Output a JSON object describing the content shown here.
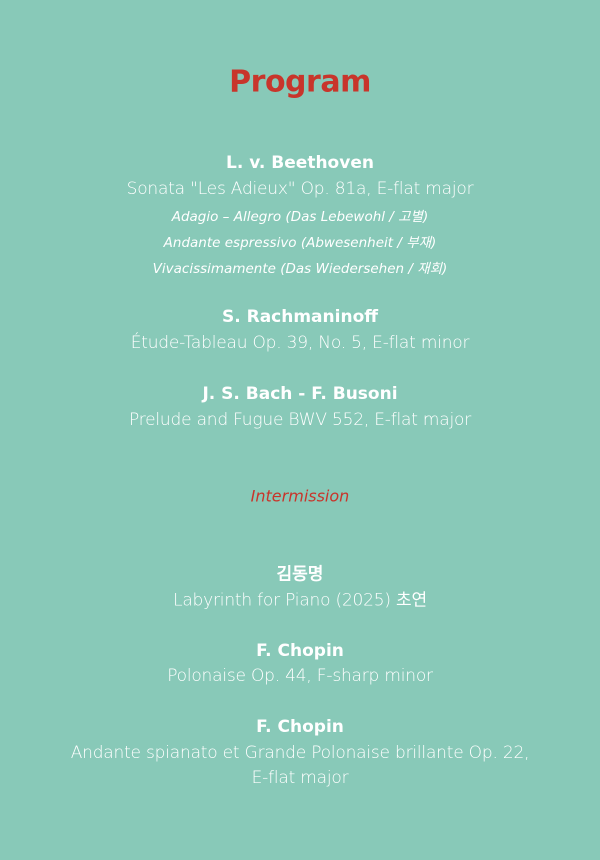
{
  "title": "Program",
  "colors": {
    "background": "#88c9b8",
    "accent": "#c8352b",
    "text": "#ffffff"
  },
  "first_half": [
    {
      "composer": "L. v. Beethoven",
      "work": "Sonata \"Les Adieux\" Op. 81a, E-flat major",
      "movements": [
        "Adagio – Allegro (Das Lebewohl / 고별)",
        "Andante espressivo (Abwesenheit / 부재)",
        "Vivacissimamente (Das Wiedersehen / 재회)"
      ]
    },
    {
      "composer": "S. Rachmaninoff",
      "work": "Étude-Tableau Op. 39, No. 5, E-flat minor"
    },
    {
      "composer": "J. S. Bach - F. Busoni",
      "work": "Prelude and Fugue BWV 552, E-flat major"
    }
  ],
  "intermission": "Intermission",
  "second_half": [
    {
      "composer": "김동명",
      "work": "Labyrinth for Piano (2025) 초연"
    },
    {
      "composer": "F. Chopin",
      "work": "Polonaise Op. 44, F-sharp minor"
    },
    {
      "composer": "F. Chopin",
      "work": "Andante spianato et Grande Polonaise brillante Op. 22,",
      "work_line2": "E-flat major"
    }
  ]
}
